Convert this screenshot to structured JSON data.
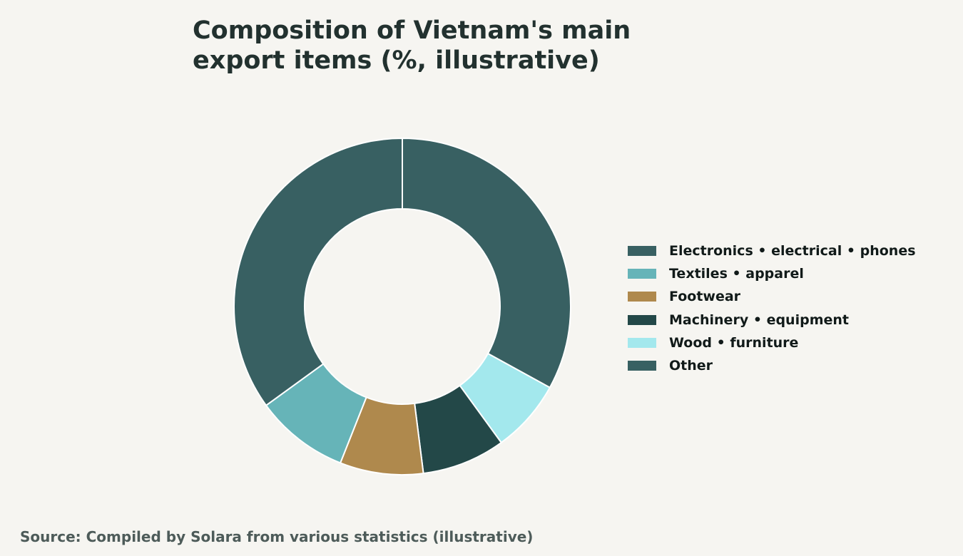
{
  "chart_data": {
    "type": "pie",
    "variant": "donut",
    "title": "Composition of Vietnam's main export items (%, illustrative)",
    "legend_position": "right",
    "slices": [
      {
        "label": "Electronics • electrical • phones",
        "value": 33,
        "color": "#386062"
      },
      {
        "label": "Wood • furniture",
        "value": 7,
        "color": "#a3e8ed"
      },
      {
        "label": "Machinery • equipment",
        "value": 8,
        "color": "#234848"
      },
      {
        "label": "Footwear",
        "value": 8,
        "color": "#af894d"
      },
      {
        "label": "Textiles • apparel",
        "value": 9,
        "color": "#66b4b8"
      },
      {
        "label": "Other",
        "value": 35,
        "color": "#386062"
      }
    ],
    "legend_order": [
      "Electronics • electrical • phones",
      "Textiles • apparel",
      "Footwear",
      "Machinery • equipment",
      "Wood • furniture",
      "Other"
    ],
    "source": "Source: Compiled by Solara from various statistics (illustrative)"
  }
}
